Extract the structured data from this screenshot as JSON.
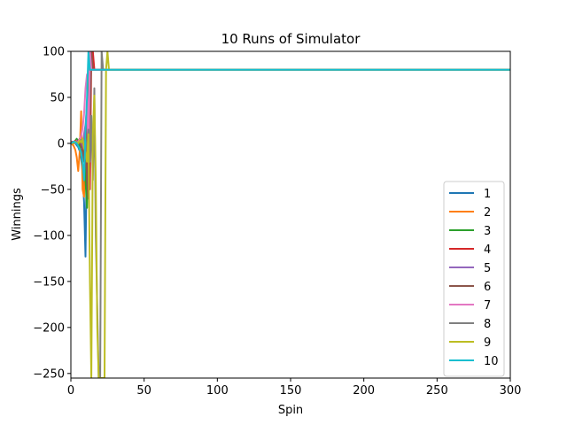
{
  "chart_data": {
    "type": "line",
    "title": "10 Runs of Simulator",
    "xlabel": "Spin",
    "ylabel": "Winnings",
    "xlim": [
      0,
      300
    ],
    "ylim": [
      -255,
      100
    ],
    "xticks": [
      0,
      50,
      100,
      150,
      200,
      250,
      300
    ],
    "yticks": [
      -250,
      -200,
      -150,
      -100,
      -50,
      0,
      50,
      100
    ],
    "xtick_labels": [
      "0",
      "50",
      "100",
      "150",
      "200",
      "250",
      "300"
    ],
    "ytick_labels": [
      "−250",
      "−200",
      "−150",
      "−100",
      "−50",
      "0",
      "50",
      "100"
    ],
    "grid": false,
    "legend_position": "lower-right",
    "series": [
      {
        "name": "1",
        "color": "#1f77b4",
        "x": [
          0,
          1,
          2,
          3,
          4,
          5,
          6,
          7,
          8,
          9,
          10,
          11,
          12,
          13,
          14,
          300
        ],
        "y": [
          0,
          1,
          2,
          0,
          -2,
          -4,
          -8,
          -16,
          -32,
          -64,
          -123,
          5,
          70,
          100,
          80,
          80
        ]
      },
      {
        "name": "2",
        "color": "#ff7f0e",
        "x": [
          0,
          1,
          2,
          3,
          4,
          5,
          6,
          7,
          8,
          9,
          10,
          11,
          12,
          13,
          14,
          300
        ],
        "y": [
          0,
          -1,
          -3,
          -7,
          -15,
          -30,
          -10,
          35,
          -50,
          -58,
          20,
          -20,
          60,
          100,
          80,
          80
        ]
      },
      {
        "name": "3",
        "color": "#2ca02c",
        "x": [
          0,
          1,
          2,
          3,
          4,
          5,
          6,
          7,
          8,
          9,
          10,
          11,
          12,
          13,
          14,
          300
        ],
        "y": [
          0,
          1,
          0,
          3,
          5,
          2,
          -5,
          -10,
          -20,
          5,
          -40,
          -70,
          15,
          100,
          80,
          80
        ]
      },
      {
        "name": "4",
        "color": "#d62728",
        "x": [
          0,
          1,
          2,
          3,
          4,
          5,
          6,
          7,
          8,
          9,
          10,
          11,
          12,
          13,
          14,
          15,
          16,
          300
        ],
        "y": [
          0,
          2,
          1,
          3,
          0,
          2,
          5,
          0,
          -5,
          -15,
          -25,
          20,
          -30,
          -50,
          100,
          100,
          80,
          80
        ]
      },
      {
        "name": "5",
        "color": "#9467bd",
        "x": [
          0,
          1,
          2,
          3,
          4,
          5,
          6,
          7,
          8,
          9,
          10,
          11,
          12,
          13,
          14,
          300
        ],
        "y": [
          0,
          1,
          2,
          0,
          3,
          1,
          4,
          -2,
          -6,
          10,
          20,
          40,
          -5,
          100,
          80,
          80
        ]
      },
      {
        "name": "6",
        "color": "#8c564b",
        "x": [
          0,
          1,
          2,
          3,
          4,
          5,
          6,
          7,
          8,
          9,
          10,
          11,
          12,
          13,
          14,
          15,
          300
        ],
        "y": [
          0,
          1,
          0,
          2,
          1,
          3,
          0,
          -3,
          -8,
          -20,
          10,
          -40,
          -60,
          25,
          100,
          80,
          80
        ]
      },
      {
        "name": "7",
        "color": "#e377c2",
        "x": [
          0,
          1,
          2,
          3,
          4,
          5,
          6,
          7,
          8,
          9,
          10,
          11,
          12,
          13,
          14,
          300
        ],
        "y": [
          0,
          1,
          2,
          1,
          0,
          2,
          4,
          8,
          16,
          32,
          60,
          75,
          -20,
          100,
          80,
          80
        ]
      },
      {
        "name": "8",
        "color": "#7f7f7f",
        "x": [
          0,
          1,
          2,
          3,
          4,
          5,
          6,
          7,
          8,
          9,
          10,
          11,
          12,
          13,
          14,
          15,
          16,
          17,
          18,
          19,
          20,
          21,
          22,
          300
        ],
        "y": [
          0,
          1,
          0,
          2,
          1,
          0,
          2,
          4,
          1,
          -3,
          5,
          -10,
          15,
          -20,
          30,
          -40,
          60,
          -100,
          -180,
          -255,
          -255,
          100,
          80,
          80
        ]
      },
      {
        "name": "9",
        "color": "#bcbd22",
        "x": [
          0,
          1,
          2,
          3,
          4,
          5,
          6,
          7,
          8,
          9,
          10,
          11,
          12,
          13,
          14,
          15,
          16,
          17,
          18,
          19,
          20,
          21,
          22,
          23,
          24,
          25,
          26,
          27,
          300
        ],
        "y": [
          0,
          1,
          0,
          2,
          1,
          0,
          3,
          1,
          5,
          -5,
          -10,
          -20,
          10,
          -150,
          -255,
          10,
          52,
          -40,
          -200,
          -255,
          -255,
          -255,
          -255,
          -255,
          80,
          100,
          80,
          80,
          80
        ]
      },
      {
        "name": "10",
        "color": "#17becf",
        "x": [
          0,
          1,
          2,
          3,
          4,
          5,
          6,
          7,
          8,
          9,
          10,
          11,
          12,
          13,
          14,
          300
        ],
        "y": [
          0,
          1,
          2,
          1,
          0,
          -3,
          -6,
          -10,
          -20,
          -40,
          10,
          50,
          100,
          80,
          80,
          80
        ]
      }
    ]
  }
}
